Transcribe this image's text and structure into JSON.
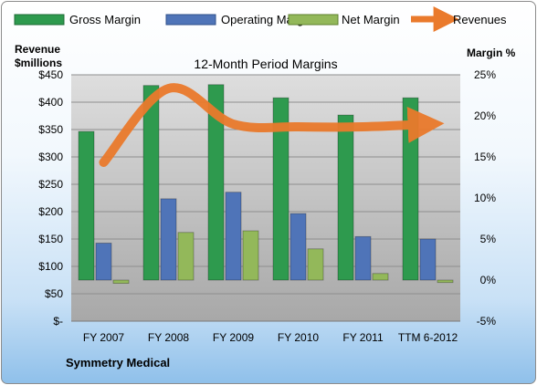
{
  "chart_data": {
    "type": "bar",
    "title": "12-Month Period Margins",
    "company": "Symmetry Medical",
    "ylabel_left": "Revenue\n$millions",
    "ylabel_right": "Margin %",
    "categories": [
      "FY 2007",
      "FY 2008",
      "FY 2009",
      "FY 2010",
      "FY 2011",
      "TTM 6-2012"
    ],
    "left_axis": {
      "ylim": [
        0,
        450
      ],
      "ticks": [
        0,
        50,
        100,
        150,
        200,
        250,
        300,
        350,
        400,
        450
      ],
      "tick_labels": [
        "$-",
        "$50",
        "$100",
        "$150",
        "$200",
        "$250",
        "$300",
        "$350",
        "$400",
        "$450"
      ]
    },
    "right_axis": {
      "ylim": [
        -5,
        25
      ],
      "ticks": [
        -5,
        0,
        5,
        10,
        15,
        20,
        25
      ],
      "tick_labels": [
        "-5%",
        "0%",
        "5%",
        "10%",
        "15%",
        "20%",
        "25%"
      ]
    },
    "series": [
      {
        "name": "Gross Margin",
        "axis": "right",
        "kind": "bar",
        "color": "#2e9a4e",
        "values": [
          18.1,
          23.7,
          23.8,
          22.2,
          20.1,
          22.2
        ]
      },
      {
        "name": "Operating Margin",
        "axis": "right",
        "kind": "bar",
        "color": "#4f74b8",
        "values": [
          4.5,
          9.9,
          10.7,
          8.1,
          5.3,
          5.0
        ]
      },
      {
        "name": "Net Margin",
        "axis": "right",
        "kind": "bar",
        "color": "#93b85a",
        "values": [
          -0.4,
          5.8,
          6.0,
          3.8,
          0.8,
          -0.3
        ]
      },
      {
        "name": "Revenues",
        "axis": "left",
        "kind": "line",
        "color": "#ea7a2c",
        "values": [
          290,
          425,
          360,
          355,
          355,
          360
        ]
      }
    ],
    "grid": true,
    "legend": "top"
  }
}
